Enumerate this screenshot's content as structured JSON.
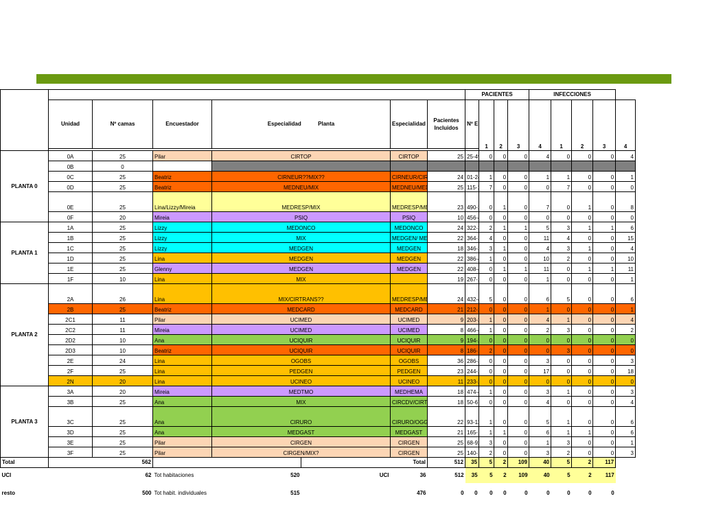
{
  "headers": {
    "pacientes": "PACIENTES",
    "infecciones": "INFECCIONES",
    "unidad": "Unidad",
    "camas": "Nº camas",
    "encuestador": "Encuestador",
    "especialidad": "Especialidad",
    "planta": "Planta",
    "esp_medico": "Especialidad Medico",
    "incluidos_1": "Pacientes",
    "incluidos_2": "Incluidos",
    "epine": "Nº EPINE",
    "p1": "1",
    "p2": "2",
    "p3": "3",
    "p4": "4",
    "i1": "1",
    "i2": "2",
    "i3": "3",
    "i4": "4"
  },
  "groups": [
    {
      "name": "PLANTA 0",
      "rows": [
        {
          "u": "0A",
          "c": "25",
          "e": "Pilar",
          "esp": "CIRTOP",
          "med": "CIRTOP",
          "inc": "25",
          "ep": "25-49",
          "p": [
            "0",
            "0",
            "0",
            "4"
          ],
          "i": [
            "0",
            "0",
            "0",
            "4"
          ],
          "colorE": "#fcd5b4",
          "colorEsp": "#fcd5b4",
          "colorMed": "#fcd5b4",
          "colorData": "#ffffff",
          "tall": false
        },
        {
          "u": "0B",
          "c": "0",
          "e": "",
          "esp": "",
          "med": "",
          "inc": "",
          "ep": "",
          "p": [
            "",
            "",
            "",
            ""
          ],
          "i": [
            "",
            "",
            "",
            ""
          ],
          "colorE": "#ffffff",
          "colorEsp": "#808080",
          "colorMed": "#808080",
          "colorData": "#808080",
          "tall": false
        },
        {
          "u": "0C",
          "c": "25",
          "e": " Beatriz",
          "esp": "CIRNEUR??MIX??",
          "med": "CIRNEUR/CIRTOP",
          "inc": "24",
          "ep": "01-24",
          "p": [
            "1",
            "0",
            "0",
            "1"
          ],
          "i": [
            "1",
            "0",
            "0",
            "1"
          ],
          "colorE": "#ff6600",
          "colorEsp": "#ff6600",
          "colorMed": "#ff6600",
          "colorData": "#ffffff",
          "tall": false
        },
        {
          "u": "0D",
          "c": "25",
          "e": " Beatriz",
          "esp": "MEDNEU/MIX",
          "med": "MEDNEU/MEDREUM",
          "inc": "25",
          "ep": "115-139",
          "p": [
            "7",
            "0",
            "0",
            "0"
          ],
          "i": [
            "7",
            "0",
            "0",
            "0"
          ],
          "colorE": "#ff6600",
          "colorEsp": "#ff6600",
          "colorMed": "#ff6600",
          "colorData": "#ffffff",
          "tall": false
        },
        {
          "u": "0E",
          "c": "25",
          "e": "Lina/Lizzy/Mireia",
          "esp": "MEDRESP/MIX",
          "med": "MEDRESP/MEDENDO/MEDGEN",
          "inc": "23",
          "ep": "490-215",
          "p": [
            "0",
            "1",
            "0",
            "7"
          ],
          "i": [
            "0",
            "1",
            "0",
            "8"
          ],
          "colorE": "#ffff99",
          "colorEsp": "#ffff99",
          "colorMed": "#ffff99",
          "colorData": "#ffffff",
          "tall": true
        },
        {
          "u": "0F",
          "c": "20",
          "e": "Mireia",
          "esp": "PSIQ",
          "med": "PSIQ",
          "inc": "10",
          "ep": "456-465",
          "p": [
            "0",
            "0",
            "0",
            "0"
          ],
          "i": [
            "0",
            "0",
            "0",
            "0"
          ],
          "colorE": "#cc99ff",
          "colorEsp": "#cc99ff",
          "colorMed": "#cc99ff",
          "colorData": "#ffffff",
          "tall": false
        }
      ]
    },
    {
      "name": "PLANTA 1",
      "rows": [
        {
          "u": "1A",
          "c": "25",
          "e": "Lizzy",
          "esp": "MEDONCO",
          "med": "MEDONCO",
          "inc": "24",
          "ep": "322-345",
          "p": [
            "2",
            "1",
            "1",
            "5"
          ],
          "i": [
            "3",
            "1",
            "1",
            "6"
          ],
          "colorE": "#00ffff",
          "colorEsp": "#00ffff",
          "colorMed": "#00ffff",
          "colorData": "#ffffff",
          "tall": false
        },
        {
          "u": "1B",
          "c": "25",
          "e": "Lizzy",
          "esp": "MIX",
          "med": "MEDGEN/ MEDNEF",
          "inc": "22",
          "ep": "364-385",
          "p": [
            "4",
            "0",
            "0",
            "11"
          ],
          "i": [
            "4",
            "0",
            "0",
            "15"
          ],
          "colorE": "#00ffff",
          "colorEsp": "#00ffff",
          "colorMed": "#00ffff",
          "colorData": "#ffffff",
          "tall": false
        },
        {
          "u": "1C",
          "c": "25",
          "e": "Lizzy",
          "esp": "MEDGEN",
          "med": "MEDGEN",
          "inc": "18",
          "ep": "346-363",
          "p": [
            "3",
            "1",
            "0",
            "4"
          ],
          "i": [
            "3",
            "1",
            "0",
            "4"
          ],
          "colorE": "#00ffff",
          "colorEsp": "#00ffff",
          "colorMed": "#00ffff",
          "colorData": "#ffffff",
          "tall": false
        },
        {
          "u": "1D",
          "c": "25",
          "e": "Lina",
          "esp": "MEDGEN",
          "med": "MEDGEN",
          "inc": "22",
          "ep": "386-407",
          "p": [
            "1",
            "0",
            "0",
            "10"
          ],
          "i": [
            "2",
            "0",
            "0",
            "10"
          ],
          "colorE": "#ffc000",
          "colorEsp": "#ffc000",
          "colorMed": "#ffc000",
          "colorData": "#ffffff",
          "tall": false
        },
        {
          "u": "1E",
          "c": "25",
          "e": "Glenny",
          "esp": "MEDGEN",
          "med": "MEDGEN",
          "inc": "22",
          "ep": "408-431",
          "p": [
            "0",
            "1",
            "1",
            "11"
          ],
          "i": [
            "0",
            "1",
            "1",
            "11"
          ],
          "colorE": "#cc99ff",
          "colorEsp": "#cc99ff",
          "colorMed": "#cc99ff",
          "colorData": "#ffffff",
          "tall": false
        },
        {
          "u": "1F",
          "c": "10",
          "e": "Lina",
          "esp": "MIX",
          "med": "",
          "inc": "19",
          "ep": "267-285",
          "p": [
            "0",
            "0",
            "0",
            "1"
          ],
          "i": [
            "0",
            "0",
            "0",
            "1"
          ],
          "colorE": "#ffc000",
          "colorEsp": "#ffc000",
          "colorMed": "#ffc000",
          "colorData": "#ffffff",
          "tall": false
        }
      ]
    },
    {
      "name": "PLANTA 2",
      "rows": [
        {
          "u": "2A",
          "c": "26",
          "e": "Lina",
          "esp": "MIX/CIRTRANS??",
          "med": "MEDRESP/MEDNEF/MEDGEN",
          "inc": "24",
          "ep": "432-455",
          "p": [
            "5",
            "0",
            "0",
            "6"
          ],
          "i": [
            "5",
            "0",
            "0",
            "6"
          ],
          "colorE": "#ffc000",
          "colorEsp": "#ffc000",
          "colorMed": "#ffc000",
          "colorData": "#ffffff",
          "tall": true
        },
        {
          "u": "2B",
          "c": "25",
          "e": " Beatriz",
          "esp": "MEDCARD",
          "med": "MEDCARD",
          "inc": "21",
          "ep": "212-232",
          "p": [
            "0",
            "0",
            "0",
            "1"
          ],
          "i": [
            "0",
            "0",
            "0",
            "1"
          ],
          "colorE": "#ff6600",
          "colorEsp": "#ff6600",
          "colorMed": "#ff6600",
          "colorData": "#ff6600",
          "rowColor": "#ff6600",
          "tall": false
        },
        {
          "u": "2C1",
          "c": "11",
          "e": "Pilar",
          "esp": "UCIMED",
          "med": "UCIMED",
          "inc": "9",
          "ep": "203-211",
          "p": [
            "1",
            "0",
            "0",
            "4"
          ],
          "i": [
            "1",
            "0",
            "0",
            "4"
          ],
          "colorE": "#fcd5b4",
          "colorEsp": "#fcd5b4",
          "colorMed": "#fcd5b4",
          "colorData": "#fcd5b4",
          "tall": false
        },
        {
          "u": "2C2",
          "c": "11",
          "e": "Mireia",
          "esp": "UCIMED",
          "med": "UCIMED",
          "inc": "8",
          "ep": "466-473",
          "p": [
            "1",
            "0",
            "0",
            "2"
          ],
          "i": [
            "3",
            "0",
            "0",
            "2"
          ],
          "colorE": "#cc99ff",
          "colorEsp": "#cc99ff",
          "colorMed": "#cc99ff",
          "colorData": "#ffffff",
          "tall": false
        },
        {
          "u": "2D2",
          "c": "10",
          "e": "Ana",
          "esp": "UCIQUIR",
          "med": "UCIQUIR",
          "inc": "9",
          "ep": "194-202",
          "p": [
            "0",
            "0",
            "0",
            "0"
          ],
          "i": [
            "0",
            "0",
            "0",
            "0"
          ],
          "colorE": "#92d050",
          "colorEsp": "#92d050",
          "colorMed": "#92d050",
          "colorData": "#92d050",
          "tall": false
        },
        {
          "u": "2D3",
          "c": "10",
          "e": " Beatriz",
          "esp": "UCIQUIR",
          "med": "UCIQUIR",
          "inc": "8",
          "ep": "186-196",
          "p": [
            "2",
            "0",
            "0",
            "0"
          ],
          "i": [
            "3",
            "0",
            "0",
            "0"
          ],
          "colorE": "#ff6600",
          "colorEsp": "#ff6600",
          "colorMed": "#ff6600",
          "colorData": "#ff6600",
          "tall": false
        },
        {
          "u": "2E",
          "c": "24",
          "e": "Lina",
          "esp": "OGOBS",
          "med": "OGOBS",
          "inc": "36",
          "ep": "286-321",
          "p": [
            "0",
            "0",
            "0",
            "3"
          ],
          "i": [
            "0",
            "0",
            "0",
            "3"
          ],
          "colorE": "#ffc000",
          "colorEsp": "#ffc000",
          "colorMed": "#ffc000",
          "colorData": "#ffffff",
          "tall": false
        },
        {
          "u": "2F",
          "c": "25",
          "e": "Lina",
          "esp": "PEDGEN",
          "med": "PEDGEN",
          "inc": "23",
          "ep": "244-266",
          "p": [
            "0",
            "0",
            "0",
            "17"
          ],
          "i": [
            "0",
            "0",
            "0",
            "18"
          ],
          "colorE": "#ffc000",
          "colorEsp": "#ffc000",
          "colorMed": "#ffc000",
          "colorData": "#ffffff",
          "tall": false
        },
        {
          "u": "2N",
          "c": "20",
          "e": "Lina",
          "esp": "UCINEO",
          "med": "UCINEO",
          "inc": "11",
          "ep": "233-243",
          "p": [
            "0",
            "0",
            "0",
            "0"
          ],
          "i": [
            "0",
            "0",
            "0",
            "0"
          ],
          "colorE": "#ffc000",
          "colorEsp": "#ffc000",
          "colorMed": "#ffc000",
          "colorData": "#ffc000",
          "rowColor": "#ffc000",
          "tall": false
        }
      ]
    },
    {
      "name": "PLANTA 3",
      "rows": [
        {
          "u": "3A",
          "c": "20",
          "e": "Mireia",
          "esp": "MEDTMO",
          "med": "MEDHEMA",
          "inc": "18",
          "ep": "474-489",
          "p": [
            "1",
            "0",
            "0",
            "3"
          ],
          "i": [
            "1",
            "0",
            "0",
            "3"
          ],
          "colorE": "#cc99ff",
          "colorEsp": "#cc99ff",
          "colorMed": "#cc99ff",
          "colorData": "#ffffff",
          "tall": false
        },
        {
          "u": "3B",
          "c": "25",
          "e": "Ana",
          "esp": "MIX",
          "med": "CIRCDV/CIRTRC",
          "inc": "18",
          "ep": "50-67",
          "p": [
            "0",
            "0",
            "0",
            "4"
          ],
          "i": [
            "0",
            "0",
            "0",
            "4"
          ],
          "colorE": "#92d050",
          "colorEsp": "#92d050",
          "colorMed": "#92d050",
          "colorData": "#ffffff",
          "tall": false
        },
        {
          "u": "3C",
          "c": "25",
          "e": "Ana",
          "esp": "CIRURO",
          "med": "CIRURO/OGGIN/CIRPLAS",
          "inc": "22",
          "ep": "93-114",
          "p": [
            "1",
            "0",
            "0",
            "5"
          ],
          "i": [
            "1",
            "0",
            "0",
            "6"
          ],
          "colorE": "#92d050",
          "colorEsp": "#92d050",
          "colorMed": "#92d050",
          "colorData": "#ffffff",
          "tall": true
        },
        {
          "u": "3D",
          "c": "25",
          "e": "Ana",
          "esp": "MEDGAST",
          "med": "MEDGAST",
          "inc": "21",
          "ep": "165-185",
          "p": [
            "1",
            "1",
            "0",
            "6"
          ],
          "i": [
            "1",
            "1",
            "0",
            "6"
          ],
          "colorE": "#92d050",
          "colorEsp": "#92d050",
          "colorMed": "#92d050",
          "colorData": "#ffffff",
          "tall": false
        },
        {
          "u": "3E",
          "c": "25",
          "e": "Pilar",
          "esp": "CIRGEN",
          "med": "CIRGEN",
          "inc": "25",
          "ep": "68-92",
          "p": [
            "3",
            "0",
            "0",
            "1"
          ],
          "i": [
            "3",
            "0",
            "0",
            "1"
          ],
          "colorE": "#fcd5b4",
          "colorEsp": "#fcd5b4",
          "colorMed": "#fcd5b4",
          "colorData": "#ffffff",
          "tall": false
        },
        {
          "u": "3F",
          "c": "25",
          "e": "Pilar",
          "esp": "CIRGEN/MIX?",
          "med": "CIRGEN",
          "inc": "25",
          "ep": "140-164",
          "p": [
            "2",
            "0",
            "0",
            "3"
          ],
          "i": [
            "2",
            "0",
            "0",
            "3"
          ],
          "colorE": "#fcd5b4",
          "colorEsp": "#fcd5b4",
          "colorMed": "#fcd5b4",
          "colorData": "#ffffff",
          "tall": false
        }
      ]
    }
  ],
  "totals": {
    "label": "Total",
    "camas": "562",
    "label2": "Total",
    "inc": "512",
    "p": [
      "35",
      "5",
      "2",
      "109"
    ],
    "i": [
      "40",
      "5",
      "2",
      "117"
    ],
    "highlight": "#ffff99"
  },
  "uci": {
    "label": "UCI",
    "camas": "62",
    "hab_label": "Tot habitaciones",
    "hab": "520",
    "label2": "UCI",
    "inc": "36",
    "ep": "512",
    "p": [
      "35",
      "5",
      "2",
      "109"
    ],
    "i": [
      "40",
      "5",
      "2",
      "117"
    ]
  },
  "resto": {
    "label": "resto",
    "camas": "500",
    "hab_label": "Tot habit. individuales",
    "hab": "515",
    "inc": "476",
    "ep": "0",
    "p": [
      "0",
      "0",
      "0",
      "0"
    ],
    "i": [
      "0",
      "0",
      "0",
      "0"
    ]
  }
}
